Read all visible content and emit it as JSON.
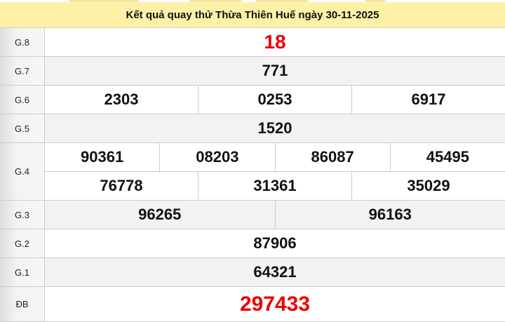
{
  "title": "Kết quả quay thử Thừa Thiên Huế ngày 30-11-2025",
  "colors": {
    "header_bg": "#fdf1a8",
    "highlight": "#e00000"
  },
  "prizes": [
    {
      "label": "G.8",
      "lines": [
        [
          "18"
        ]
      ]
    },
    {
      "label": "G.7",
      "lines": [
        [
          "771"
        ]
      ]
    },
    {
      "label": "G.6",
      "lines": [
        [
          "2303",
          "0253",
          "6917"
        ]
      ]
    },
    {
      "label": "G.5",
      "lines": [
        [
          "1520"
        ]
      ]
    },
    {
      "label": "G.4",
      "lines": [
        [
          "90361",
          "08203",
          "86087",
          "45495"
        ],
        [
          "76778",
          "31361",
          "35029"
        ]
      ]
    },
    {
      "label": "G.3",
      "lines": [
        [
          "96265",
          "96163"
        ]
      ]
    },
    {
      "label": "G.2",
      "lines": [
        [
          "87906"
        ]
      ]
    },
    {
      "label": "G.1",
      "lines": [
        [
          "64321"
        ]
      ]
    },
    {
      "label": "ĐB",
      "lines": [
        [
          "297433"
        ]
      ]
    }
  ]
}
